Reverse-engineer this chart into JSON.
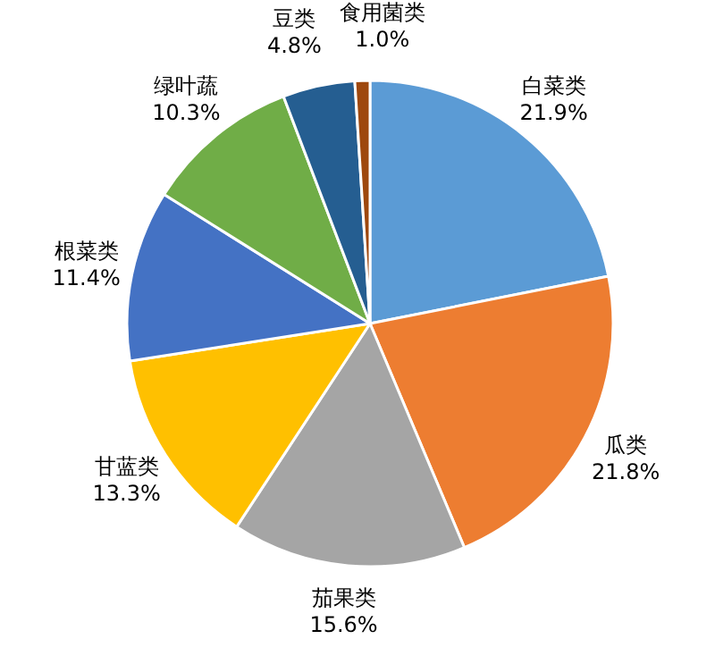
{
  "chart_data": {
    "type": "pie",
    "categories": [
      "白菜类",
      "瓜类",
      "茄果类",
      "甘蓝类",
      "根菜类",
      "绿叶蔬",
      "豆类",
      "食用菌类"
    ],
    "values": [
      21.9,
      21.8,
      15.6,
      13.3,
      11.4,
      10.3,
      4.8,
      1.0
    ],
    "value_labels": [
      "21.9%",
      "21.8%",
      "15.6%",
      "13.3%",
      "11.4%",
      "10.3%",
      "4.8%",
      "1.0%"
    ],
    "colors": [
      "#5b9bd5",
      "#ed7d31",
      "#a5a5a5",
      "#ffc000",
      "#4472c4",
      "#70ad47",
      "#255e91",
      "#9e480e"
    ]
  }
}
